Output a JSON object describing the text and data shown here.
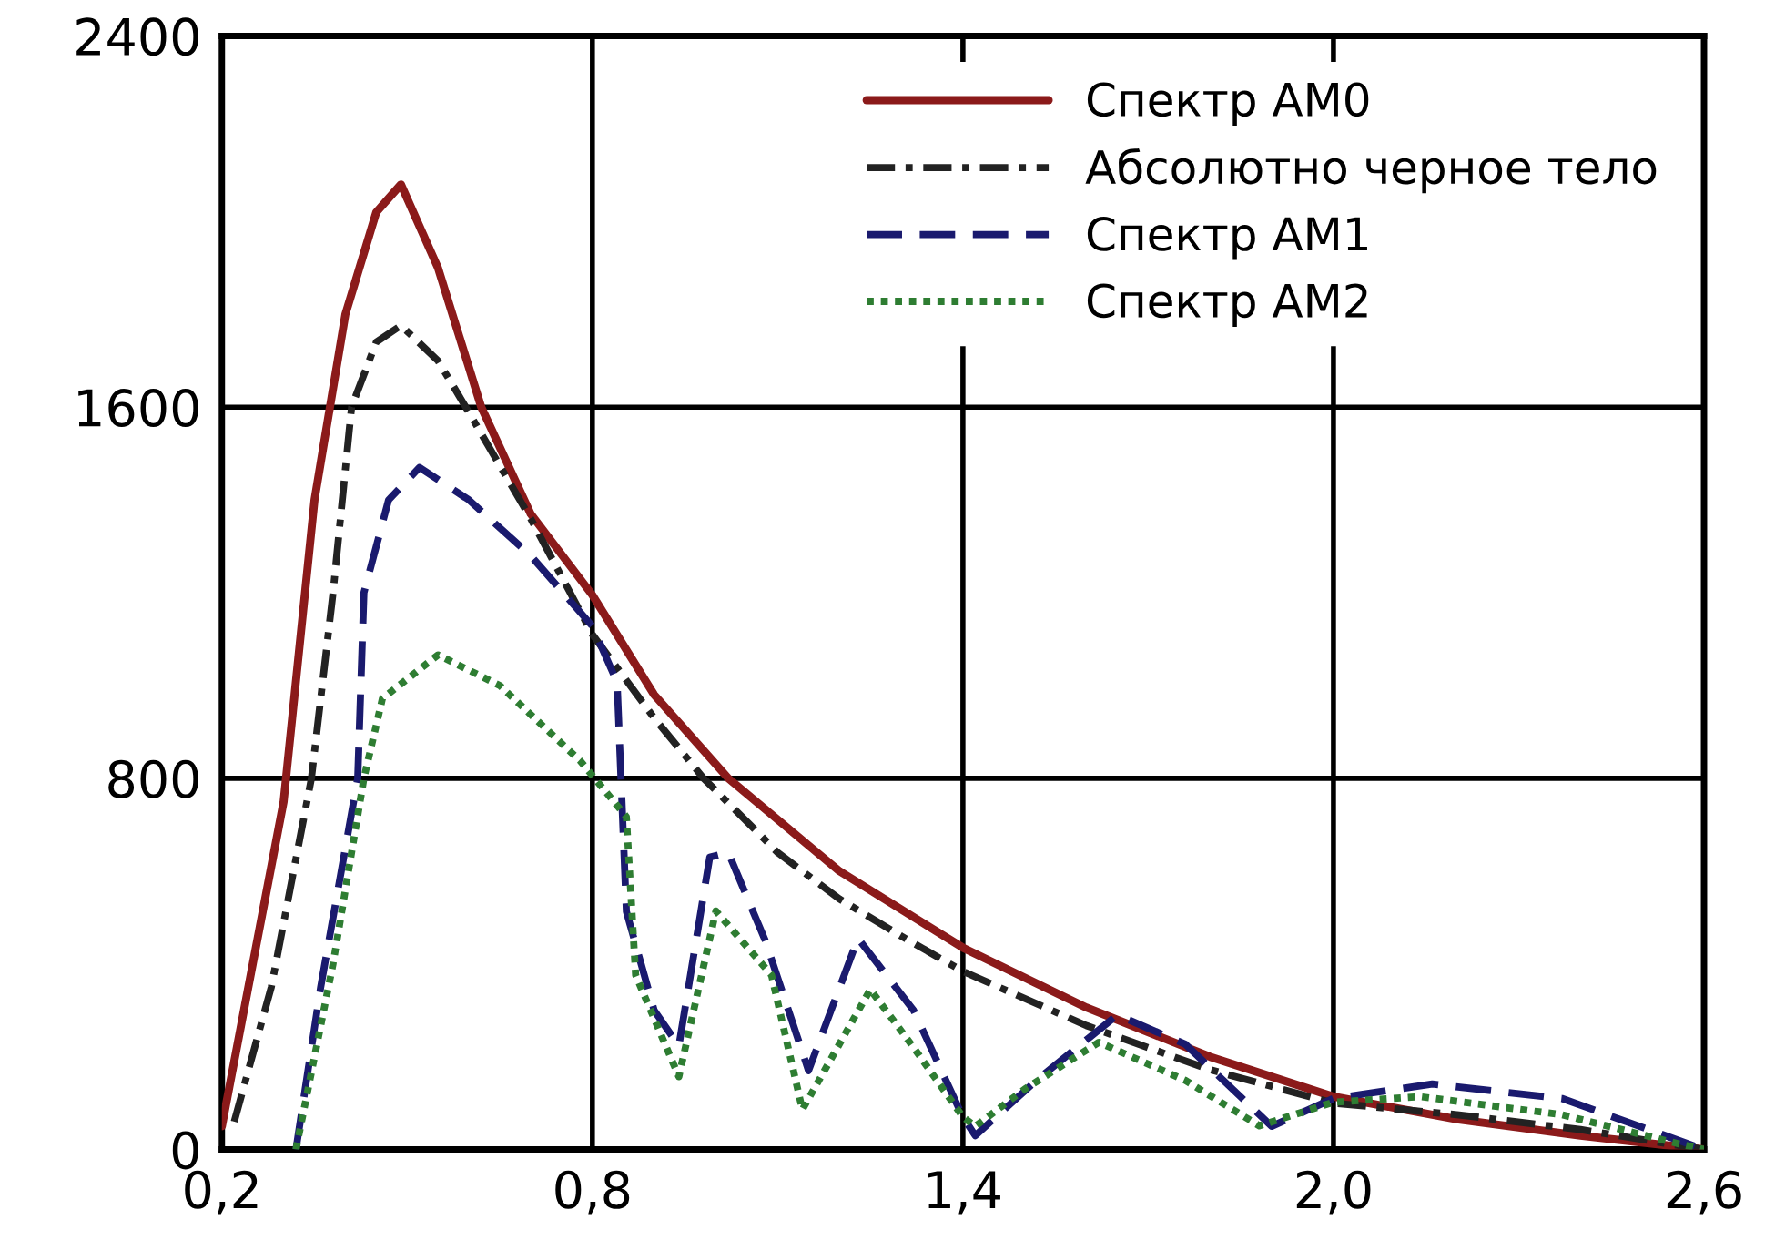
{
  "chart_data": {
    "type": "line",
    "xlim": [
      0.2,
      2.6
    ],
    "ylim": [
      0,
      2400
    ],
    "xticks": [
      {
        "value": 0.2,
        "label": "0,2"
      },
      {
        "value": 0.8,
        "label": "0,8"
      },
      {
        "value": 1.4,
        "label": "1,4"
      },
      {
        "value": 2.0,
        "label": "2,0"
      },
      {
        "value": 2.6,
        "label": "2,6"
      }
    ],
    "yticks": [
      0,
      800,
      1600,
      2400
    ],
    "grid": true,
    "legend": "top right",
    "marker": "none",
    "series": [
      {
        "name": "Спектр AM0",
        "color": "#8b1a1a",
        "line_style": "solid",
        "x": [
          0.2,
          0.25,
          0.3,
          0.35,
          0.4,
          0.45,
          0.49,
          0.55,
          0.62,
          0.7,
          0.8,
          0.9,
          1.02,
          1.2,
          1.4,
          1.6,
          1.8,
          2.0,
          2.2,
          2.4,
          2.6
        ],
        "values": [
          50,
          400,
          750,
          1400,
          1800,
          2020,
          2080,
          1900,
          1600,
          1370,
          1195,
          980,
          800,
          600,
          435,
          306,
          200,
          114,
          65,
          30,
          0
        ]
      },
      {
        "name": "Абсолютно черное тело",
        "color": "#222222",
        "line_style": "dashdot",
        "x": [
          0.22,
          0.28,
          0.345,
          0.38,
          0.41,
          0.45,
          0.49,
          0.55,
          0.595,
          0.7,
          0.8,
          0.9,
          0.98,
          1.1,
          1.2,
          1.3,
          1.4,
          1.6,
          1.8,
          2.0,
          2.2,
          2.4,
          2.6
        ],
        "values": [
          60,
          350,
          800,
          1200,
          1600,
          1740,
          1776,
          1700,
          1600,
          1360,
          1110,
          930,
          800,
          640,
          540,
          460,
          384,
          267,
          172,
          100,
          75,
          43,
          0
        ]
      },
      {
        "name": "Спектр AM1",
        "color": "#1a1a6e",
        "line_style": "dashed",
        "x": [
          0.32,
          0.36,
          0.42,
          0.43,
          0.47,
          0.52,
          0.6,
          0.7,
          0.8,
          0.84,
          0.855,
          0.9,
          0.94,
          0.99,
          1.02,
          1.08,
          1.15,
          1.23,
          1.32,
          1.4,
          1.42,
          1.52,
          1.65,
          1.76,
          1.9,
          2.0,
          2.16,
          2.37,
          2.51,
          2.6
        ],
        "values": [
          0,
          350,
          800,
          1200,
          1400,
          1470,
          1400,
          1280,
          1128,
          1007,
          513,
          300,
          223,
          630,
          640,
          450,
          170,
          455,
          300,
          70,
          30,
          150,
          290,
          227,
          50,
          110,
          141,
          110,
          43,
          0
        ]
      },
      {
        "name": "Спектр AM2",
        "color": "#2e7d32",
        "line_style": "dotted",
        "x": [
          0.32,
          0.38,
          0.43,
          0.46,
          0.55,
          0.65,
          0.78,
          0.855,
          0.87,
          0.94,
          1.0,
          1.09,
          1.14,
          1.25,
          1.32,
          1.4,
          1.42,
          1.5,
          1.62,
          1.76,
          1.88,
          2.0,
          2.14,
          2.37,
          2.56,
          2.6
        ],
        "values": [
          0,
          400,
          800,
          972,
          1066,
          1000,
          838,
          717,
          376,
          157,
          514,
          376,
          86,
          345,
          220,
          70,
          50,
          130,
          231,
          149,
          51,
          102,
          114,
          75,
          12,
          0
        ]
      }
    ]
  }
}
